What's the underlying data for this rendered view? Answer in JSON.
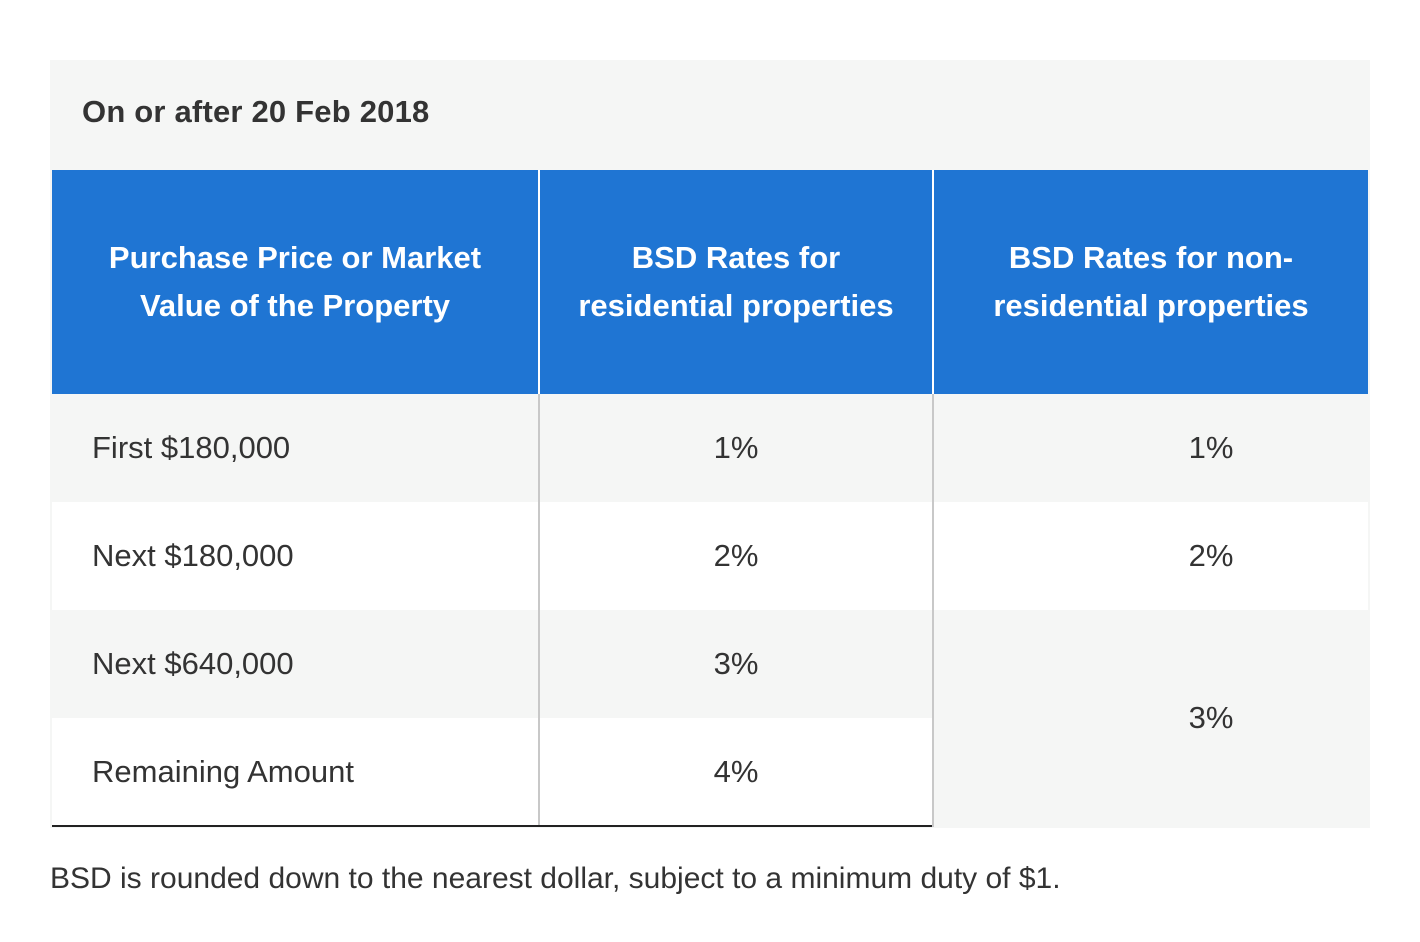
{
  "caption": "On or after 20 Feb 2018",
  "table": {
    "headers": [
      "Purchase Price or Market Value of the Property",
      "BSD Rates for residential properties",
      "BSD Rates for non-residential properties"
    ],
    "rows": [
      {
        "tier": "First $180,000",
        "residential": "1%",
        "non_residential": "1%"
      },
      {
        "tier": "Next $180,000",
        "residential": "2%",
        "non_residential": "2%"
      },
      {
        "tier": "Next $640,000",
        "residential": "3%",
        "non_residential": "3%"
      },
      {
        "tier": "Remaining Amount",
        "residential": "4%"
      }
    ]
  },
  "footnote": "BSD is rounded down to the nearest dollar, subject to a minimum duty of $1.",
  "colors": {
    "header_background": "#1f75d3",
    "header_text": "#ffffff",
    "stripe": "#f5f6f5",
    "body_text": "#333333"
  }
}
